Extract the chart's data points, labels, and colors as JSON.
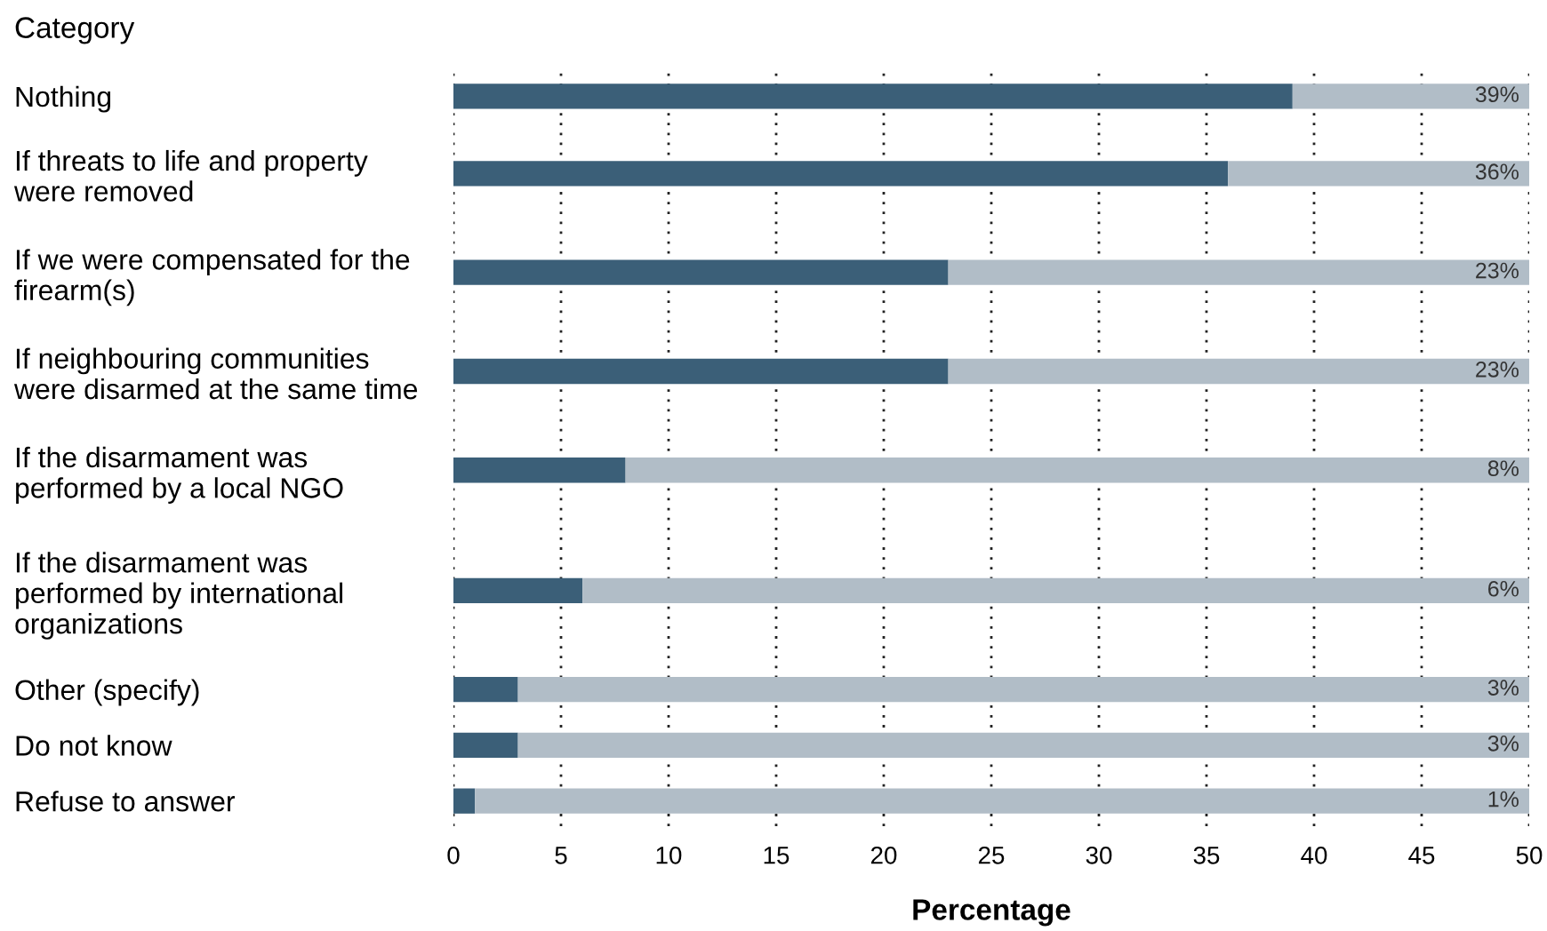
{
  "chart_data": {
    "type": "bar",
    "orientation": "horizontal",
    "stacked": true,
    "ylabel": "Category",
    "xlabel": "Percentage",
    "categories": [
      "Nothing",
      "If threats to life and property were removed",
      "If we were compensated for the firearm(s)",
      "If neighbouring communities were disarmed at the same time",
      "If the disarmament was performed by a local NGO",
      "If the disarmament was performed by international organizations",
      "Other (specify)",
      "Do not know",
      "Refuse to answer"
    ],
    "series": [
      {
        "color": "#3b5f78",
        "values": [
          39,
          36,
          23,
          23,
          8,
          6,
          3,
          3,
          1
        ]
      },
      {
        "color": "#b1bdc7",
        "values": [
          11,
          14,
          27,
          27,
          42,
          44,
          47,
          47,
          49
        ]
      }
    ],
    "annotations": [
      "39%",
      "36%",
      "23%",
      "23%",
      "8%",
      "6%",
      "3%",
      "3%",
      "1%"
    ],
    "xlim": [
      0,
      50
    ],
    "xticks": [
      0,
      5,
      10,
      15,
      20,
      25,
      30,
      35,
      40,
      45,
      50
    ],
    "grid": "x"
  }
}
